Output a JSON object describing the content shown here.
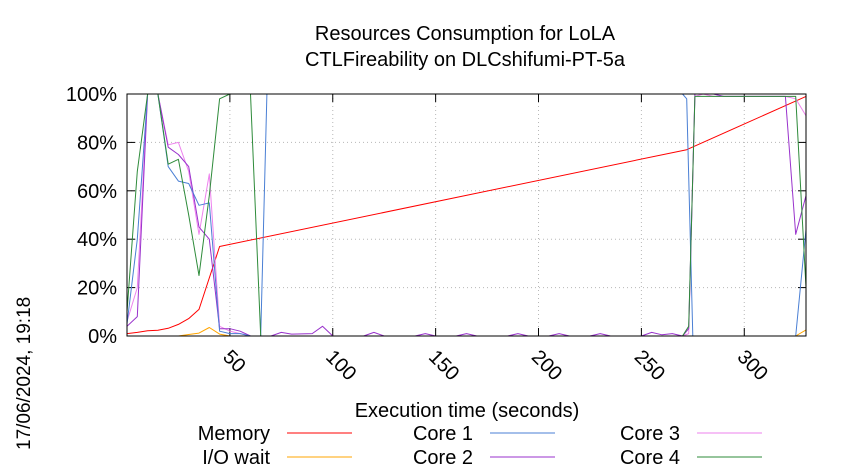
{
  "chart_data": {
    "type": "line",
    "title": "Resources Consumption for LoLA",
    "subtitle": "CTLFireability on DLCshifumi-PT-5a",
    "xlabel": "Execution time (seconds)",
    "ylabel": "",
    "xlim": [
      0,
      330
    ],
    "ylim": [
      0,
      100
    ],
    "x_ticks": [
      50,
      100,
      150,
      200,
      250,
      300
    ],
    "y_ticks": [
      0,
      20,
      40,
      60,
      80,
      100
    ],
    "y_tick_labels": [
      "0%",
      "20%",
      "40%",
      "60%",
      "80%",
      "100%"
    ],
    "grid": true,
    "legend_position": "bottom",
    "timestamp": "17/06/2024, 19:18",
    "series": [
      {
        "name": "Memory",
        "color": "#ff0000",
        "points": [
          [
            0,
            1
          ],
          [
            5,
            1.5
          ],
          [
            10,
            2.2
          ],
          [
            15,
            2.4
          ],
          [
            20,
            3.2
          ],
          [
            25,
            4.8
          ],
          [
            30,
            7.2
          ],
          [
            35,
            11
          ],
          [
            45,
            37
          ],
          [
            272,
            77
          ],
          [
            330,
            99
          ]
        ]
      },
      {
        "name": "I/O wait",
        "color": "#ffa500",
        "points": [
          [
            0,
            0
          ],
          [
            25,
            0
          ],
          [
            30,
            0.6
          ],
          [
            35,
            1.2
          ],
          [
            40,
            3.5
          ],
          [
            45,
            0.8
          ],
          [
            50,
            0
          ],
          [
            325,
            0
          ],
          [
            330,
            2.5
          ]
        ]
      },
      {
        "name": "Core 1",
        "color": "#4a7fd4",
        "points": [
          [
            0,
            5
          ],
          [
            5,
            40
          ],
          [
            10,
            100
          ],
          [
            15,
            100
          ],
          [
            20,
            70
          ],
          [
            25,
            64
          ],
          [
            30,
            63
          ],
          [
            35,
            54
          ],
          [
            40,
            55
          ],
          [
            45,
            2
          ],
          [
            50,
            1
          ],
          [
            55,
            1
          ],
          [
            60,
            0
          ],
          [
            65,
            0
          ],
          [
            68,
            100
          ],
          [
            270,
            100
          ],
          [
            272,
            98
          ],
          [
            275,
            0
          ],
          [
            325,
            0
          ],
          [
            330,
            44
          ]
        ]
      },
      {
        "name": "Core 2",
        "color": "#9932cc",
        "points": [
          [
            0,
            4
          ],
          [
            5,
            8
          ],
          [
            10,
            100
          ],
          [
            15,
            100
          ],
          [
            20,
            78
          ],
          [
            25,
            75
          ],
          [
            30,
            70
          ],
          [
            35,
            45
          ],
          [
            40,
            40
          ],
          [
            45,
            3
          ],
          [
            50,
            3
          ],
          [
            55,
            2
          ],
          [
            60,
            0
          ],
          [
            70,
            0
          ],
          [
            75,
            1.5
          ],
          [
            80,
            0.8
          ],
          [
            90,
            1
          ],
          [
            95,
            4
          ],
          [
            100,
            0
          ],
          [
            115,
            0
          ],
          [
            120,
            1.5
          ],
          [
            125,
            0
          ],
          [
            140,
            0
          ],
          [
            145,
            1
          ],
          [
            150,
            0
          ],
          [
            160,
            0
          ],
          [
            165,
            1
          ],
          [
            170,
            0
          ],
          [
            185,
            0
          ],
          [
            190,
            1
          ],
          [
            195,
            0
          ],
          [
            205,
            0
          ],
          [
            210,
            1
          ],
          [
            215,
            0
          ],
          [
            225,
            0
          ],
          [
            230,
            1
          ],
          [
            235,
            0
          ],
          [
            250,
            0
          ],
          [
            255,
            1.5
          ],
          [
            260,
            0.5
          ],
          [
            265,
            1
          ],
          [
            270,
            0
          ],
          [
            273,
            3
          ],
          [
            276,
            100
          ],
          [
            285,
            100
          ],
          [
            290,
            99
          ],
          [
            315,
            99
          ],
          [
            320,
            99
          ],
          [
            325,
            42
          ],
          [
            330,
            58
          ]
        ]
      },
      {
        "name": "Core 3",
        "color": "#ee82ee",
        "points": [
          [
            0,
            6
          ],
          [
            5,
            20
          ],
          [
            10,
            100
          ],
          [
            15,
            100
          ],
          [
            20,
            79
          ],
          [
            25,
            80
          ],
          [
            30,
            68
          ],
          [
            35,
            42
          ],
          [
            40,
            67
          ],
          [
            45,
            4
          ],
          [
            50,
            2
          ],
          [
            55,
            1
          ],
          [
            60,
            0
          ],
          [
            270,
            0
          ],
          [
            273,
            1
          ],
          [
            276,
            99
          ],
          [
            280,
            100
          ],
          [
            285,
            99
          ],
          [
            320,
            99
          ],
          [
            325,
            98
          ],
          [
            330,
            91
          ]
        ]
      },
      {
        "name": "Core 4",
        "color": "#2e8b3a",
        "points": [
          [
            0,
            10
          ],
          [
            5,
            68
          ],
          [
            10,
            100
          ],
          [
            15,
            100
          ],
          [
            20,
            71
          ],
          [
            25,
            73
          ],
          [
            30,
            50
          ],
          [
            35,
            25
          ],
          [
            40,
            58
          ],
          [
            45,
            98
          ],
          [
            50,
            100
          ],
          [
            60,
            100
          ],
          [
            65,
            0
          ],
          [
            270,
            0
          ],
          [
            273,
            4
          ],
          [
            276,
            99
          ],
          [
            280,
            99
          ],
          [
            320,
            99
          ],
          [
            325,
            99
          ],
          [
            330,
            20
          ]
        ]
      }
    ]
  }
}
